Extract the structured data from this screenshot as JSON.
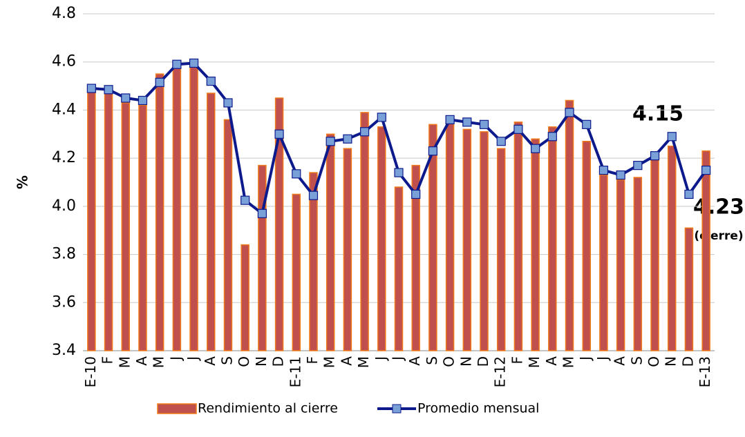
{
  "chart_data": {
    "type": "bar_line",
    "y_label": "%",
    "categories": [
      "E-10",
      "F",
      "M",
      "A",
      "M",
      "J",
      "J",
      "A",
      "S",
      "O",
      "N",
      "D",
      "E-11",
      "F",
      "M",
      "A",
      "M",
      "J",
      "J",
      "A",
      "S",
      "O",
      "N",
      "D",
      "E-12",
      "F",
      "M",
      "A",
      "M",
      "J",
      "J",
      "A",
      "S",
      "O",
      "N",
      "D",
      "E-13"
    ],
    "series": [
      {
        "name": "Rendimiento al cierre",
        "type": "bar",
        "color": "#c0504d",
        "edge": "#f07a1a",
        "values": [
          4.48,
          4.47,
          4.43,
          4.42,
          4.55,
          4.58,
          4.6,
          4.47,
          4.36,
          3.84,
          4.17,
          4.45,
          4.05,
          4.14,
          4.3,
          4.24,
          4.39,
          4.33,
          4.08,
          4.17,
          4.34,
          4.36,
          4.32,
          4.31,
          4.24,
          4.35,
          4.28,
          4.33,
          4.44,
          4.27,
          4.13,
          4.11,
          4.12,
          4.2,
          4.25,
          3.91,
          4.23
        ]
      },
      {
        "name": "Promedio mensual",
        "type": "line",
        "color": "#0d1a8c",
        "marker_color": "#7aa0d8",
        "values": [
          4.49,
          4.485,
          4.45,
          4.44,
          4.515,
          4.59,
          4.595,
          4.52,
          4.43,
          4.025,
          3.97,
          4.3,
          4.135,
          4.045,
          4.27,
          4.28,
          4.31,
          4.37,
          4.14,
          4.05,
          4.23,
          4.36,
          4.35,
          4.34,
          4.27,
          4.32,
          4.24,
          4.29,
          4.39,
          4.34,
          4.15,
          4.13,
          4.17,
          4.21,
          4.29,
          4.05,
          4.15
        ]
      }
    ],
    "annotations": [
      "4.15",
      "4.23",
      "(cierre)"
    ],
    "ylim": [
      3.4,
      4.8
    ],
    "yticks": [
      3.4,
      3.6,
      3.8,
      {
        "value": 4,
        "label": "4.0"
      },
      4.2,
      4.4,
      4.6,
      4.8
    ],
    "grid": true,
    "legend": "bottom"
  }
}
